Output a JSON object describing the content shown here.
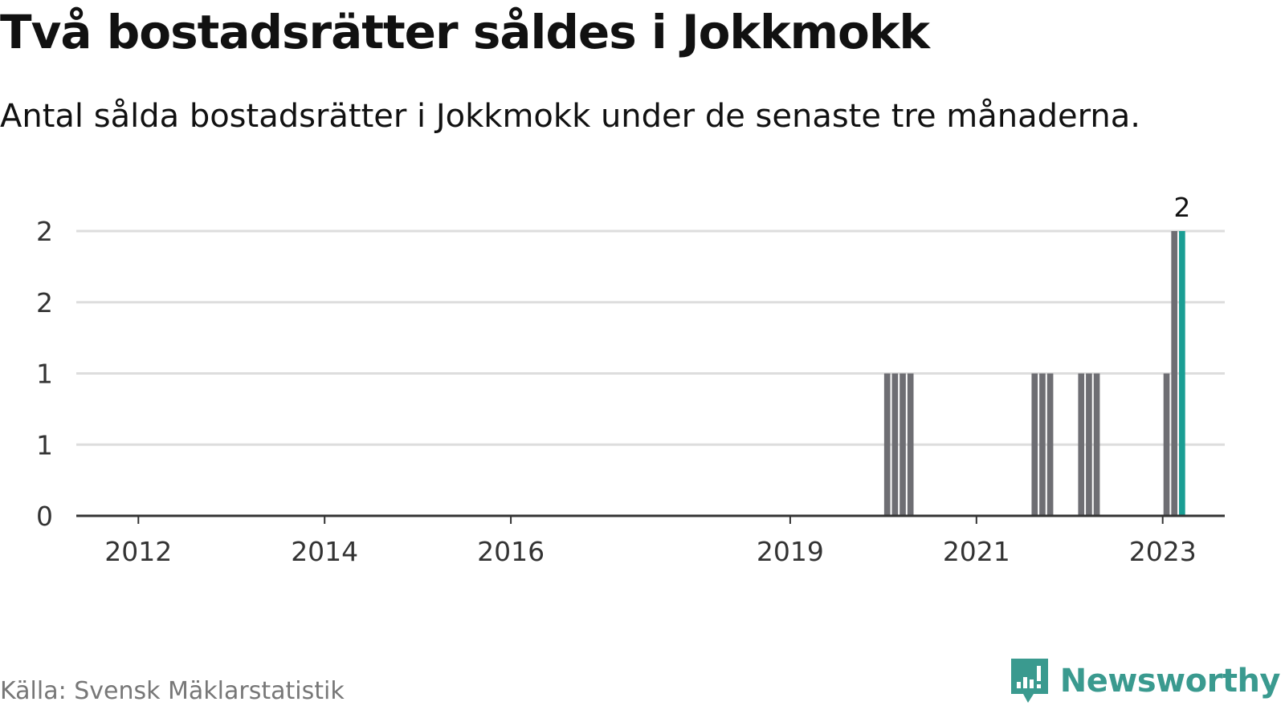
{
  "header": {
    "title": "Två bostadsrätter såldes i Jokkmokk",
    "subtitle": "Antal sålda bostadsrätter i Jokkmokk under de senaste tre månaderna."
  },
  "footer": {
    "source": "Källa: Svensk Mäklarstatistik",
    "brand": "Newsworthy",
    "logo_icon": "bar-chart-speech-bubble-icon"
  },
  "colors": {
    "bar": "#6e6e73",
    "highlight": "#1a9e94",
    "grid": "#dddddd",
    "axis": "#333333",
    "brand": "#3a9a8f"
  },
  "chart_data": {
    "type": "bar",
    "title": "Två bostadsrätter såldes i Jokkmokk",
    "subtitle": "Antal sålda bostadsrätter i Jokkmokk under de senaste tre månaderna.",
    "xlabel": "",
    "ylabel": "",
    "ylim": [
      0,
      2
    ],
    "y_ticks": [
      0,
      0.5,
      1,
      1.5,
      2
    ],
    "y_tick_labels": [
      "0",
      "1",
      "1",
      "2",
      "2"
    ],
    "x_ticks": [
      "2012",
      "2014",
      "2016",
      "2019",
      "2021",
      "2023"
    ],
    "x_tick_positions": [
      "2012-01",
      "2014-01",
      "2016-01",
      "2019-01",
      "2021-01",
      "2023-01"
    ],
    "x_range": [
      "2011-05",
      "2023-09"
    ],
    "bar_width_months": 1,
    "grid": true,
    "legend": "none",
    "series": [
      {
        "values": [
          {
            "x": "2020-01",
            "y": 1
          },
          {
            "x": "2020-02",
            "y": 1
          },
          {
            "x": "2020-03",
            "y": 1
          },
          {
            "x": "2020-04",
            "y": 1
          },
          {
            "x": "2021-08",
            "y": 1
          },
          {
            "x": "2021-09",
            "y": 1
          },
          {
            "x": "2021-10",
            "y": 1
          },
          {
            "x": "2022-02",
            "y": 1
          },
          {
            "x": "2022-03",
            "y": 1
          },
          {
            "x": "2022-04",
            "y": 1
          },
          {
            "x": "2023-01",
            "y": 1
          },
          {
            "x": "2023-02",
            "y": 2
          },
          {
            "x": "2023-03",
            "y": 2,
            "highlight": true,
            "label": "2"
          }
        ]
      }
    ]
  }
}
